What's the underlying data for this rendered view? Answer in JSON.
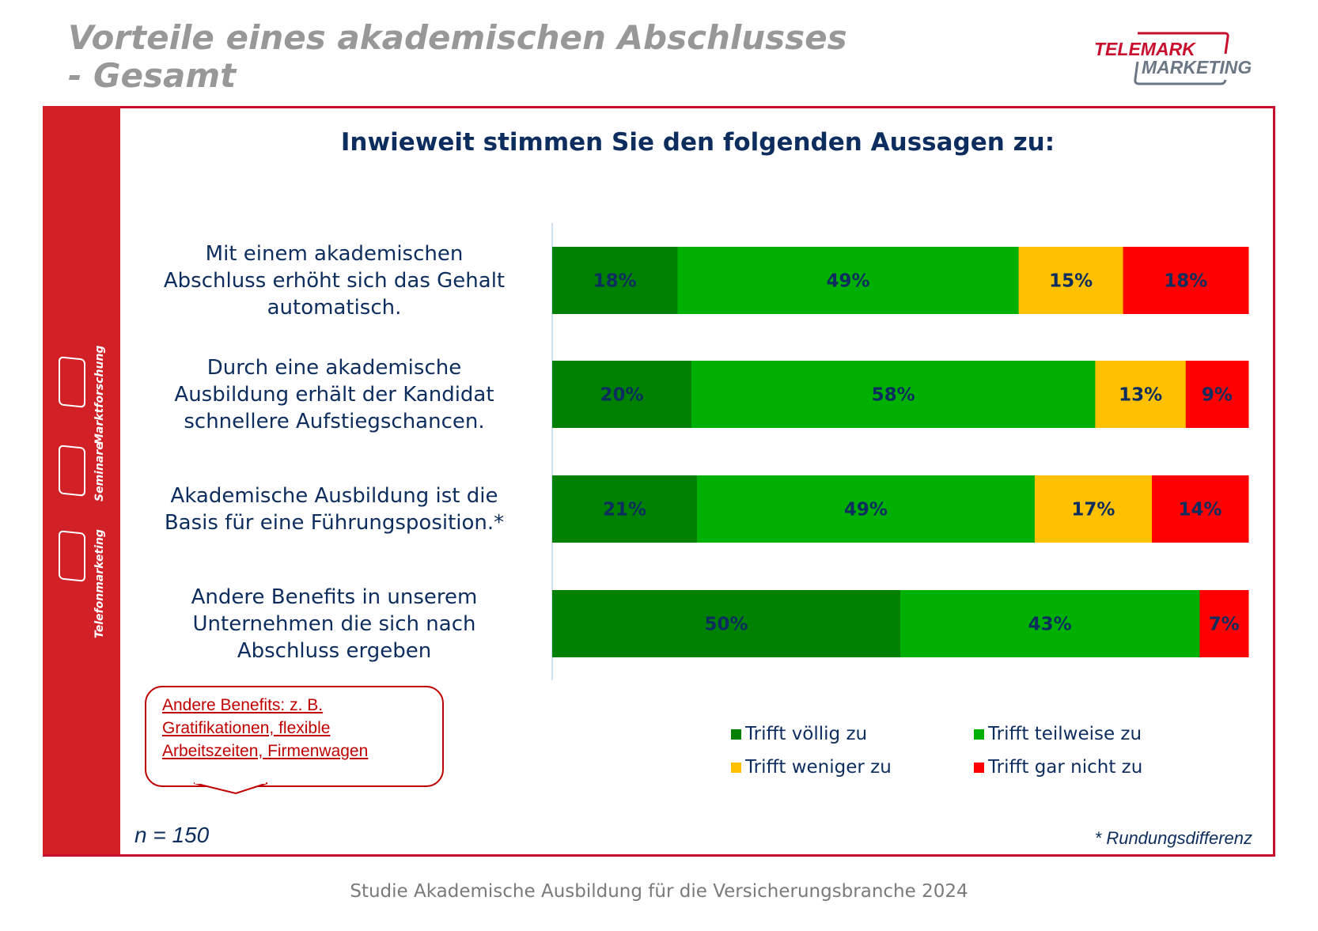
{
  "header": {
    "title_line1": "Vorteile eines akademischen Abschlusses",
    "title_line2": "- Gesamt",
    "logo_text_1": "TELEMARK",
    "logo_text_2": "MARKETING"
  },
  "sidebar": {
    "items": [
      {
        "label": "Marktforschung"
      },
      {
        "label": "Seminare"
      },
      {
        "label": "Telefonmarketing"
      }
    ]
  },
  "chart_data": {
    "type": "bar",
    "orientation": "horizontal-stacked-100",
    "title": "Inwieweit stimmen Sie den folgenden Aussagen zu:",
    "categories": [
      "Mit einem akademischen Abschluss erhöht sich das Gehalt automatisch.",
      "Durch eine akademische Ausbildung erhält der Kandidat schnellere Aufstiegschancen.",
      "Akademische Ausbildung ist die Basis für eine Führungsposition.*",
      "Andere Benefits in unserem Unternehmen die sich nach Abschluss ergeben"
    ],
    "category_lines": [
      [
        "Mit einem akademischen",
        "Abschluss erhöht sich das Gehalt",
        "automatisch."
      ],
      [
        "Durch eine akademische",
        "Ausbildung erhält der Kandidat",
        "schnellere Aufstiegschancen."
      ],
      [
        "Akademische Ausbildung ist die",
        "Basis für eine Führungsposition.*"
      ],
      [
        "Andere Benefits in unserem",
        "Unternehmen die sich nach",
        "Abschluss ergeben"
      ]
    ],
    "series": [
      {
        "name": "Trifft völlig zu",
        "color": "#008000",
        "values": [
          18,
          20,
          21,
          50
        ]
      },
      {
        "name": "Trifft teilweise zu",
        "color": "#00b000",
        "values": [
          49,
          58,
          49,
          43
        ]
      },
      {
        "name": "Trifft weniger zu",
        "color": "#ffc000",
        "values": [
          15,
          13,
          17,
          0
        ]
      },
      {
        "name": "Trifft gar nicht zu",
        "color": "#ff0000",
        "values": [
          18,
          9,
          14,
          7
        ]
      }
    ],
    "value_format": "%",
    "legend": "bottom-right"
  },
  "callout": {
    "lines": [
      "Andere Benefits: z. B.",
      "Gratifikationen, flexible",
      "Arbeitszeiten, Firmenwagen"
    ]
  },
  "sample": "n = 150",
  "note": "* Rundungsdifferenz",
  "footer": "Studie Akademische Ausbildung für die Versicherungsbranche 2024"
}
